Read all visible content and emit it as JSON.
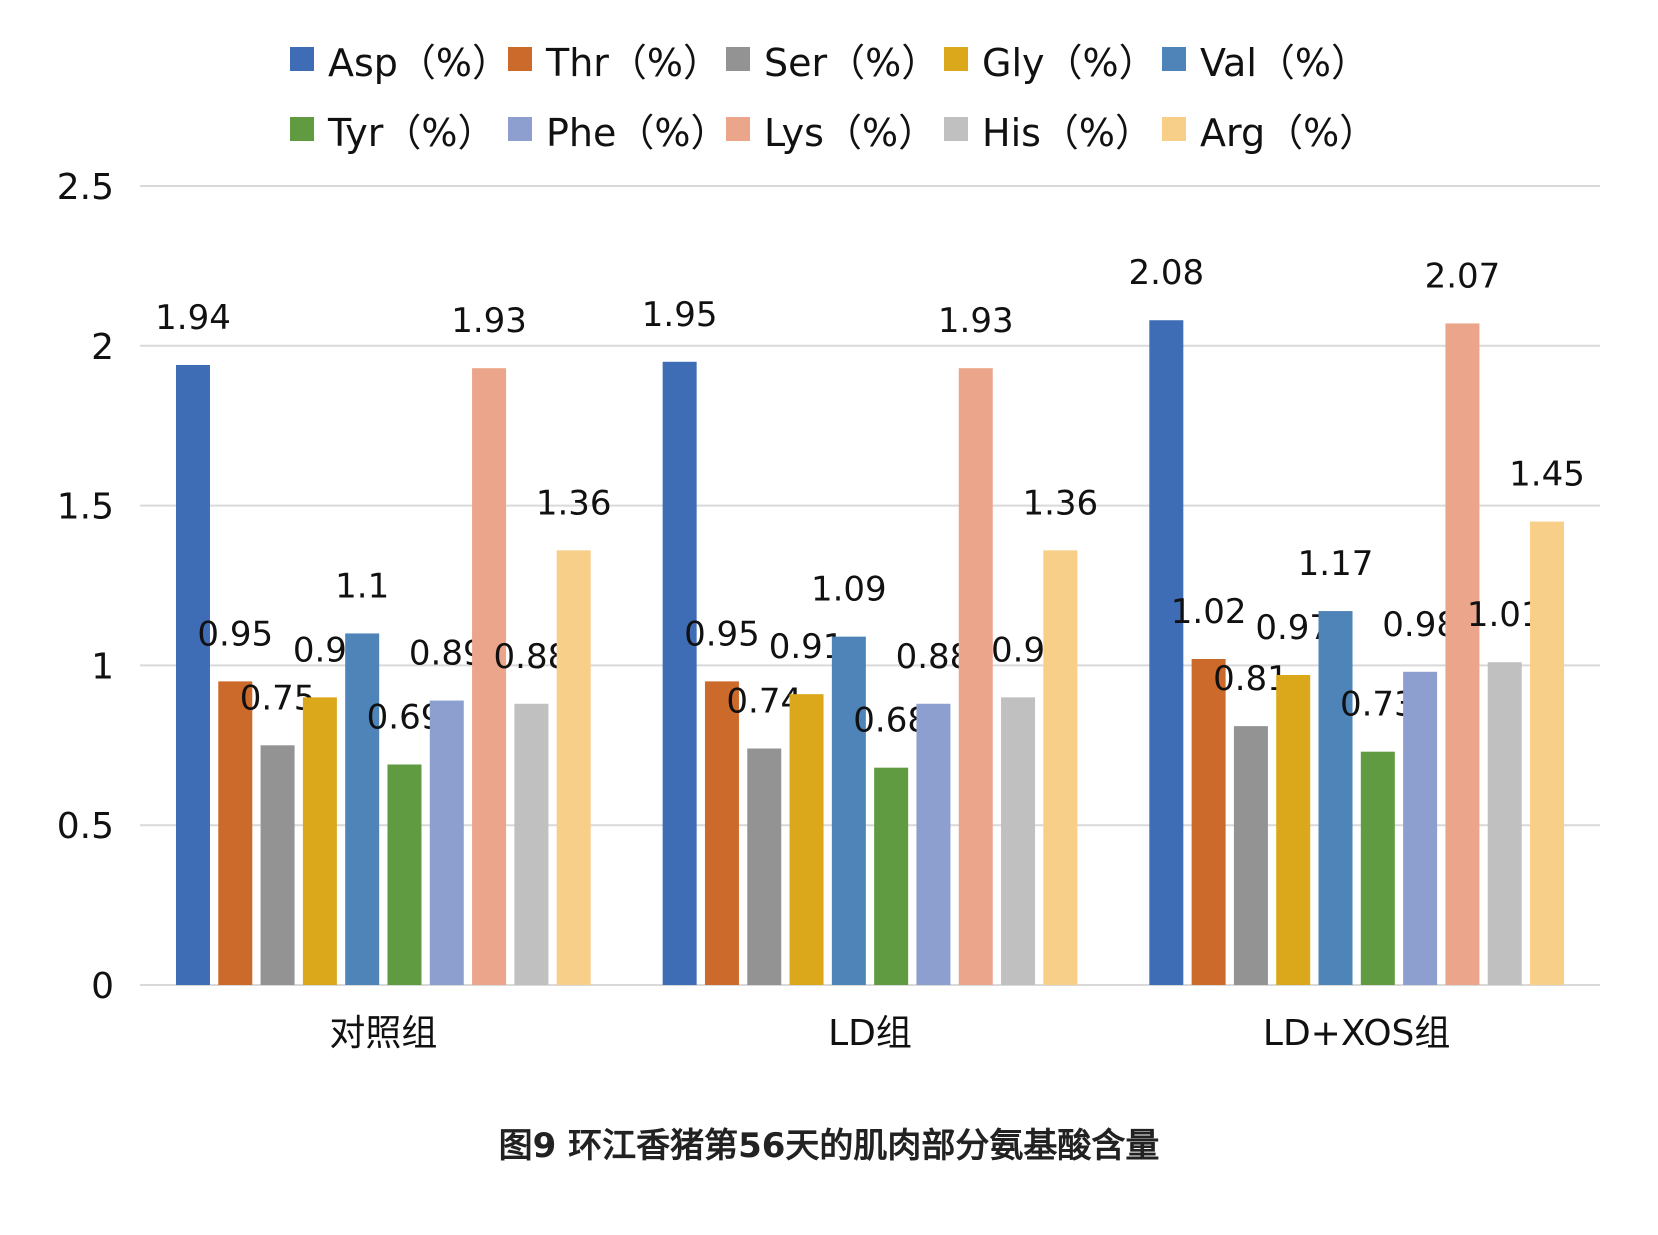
{
  "caption": "图9 环江香猪第56天的肌肉部分氨基酸含量",
  "chart_data": {
    "type": "bar",
    "categories": [
      "对照组",
      "LD组",
      "LD+XOS组"
    ],
    "series": [
      {
        "name": "Asp（%）",
        "color": "#3f6db5",
        "values": [
          1.94,
          1.95,
          2.08
        ]
      },
      {
        "name": "Thr（%）",
        "color": "#cc6a2c",
        "values": [
          0.95,
          0.95,
          1.02
        ]
      },
      {
        "name": "Ser（%）",
        "color": "#939393",
        "values": [
          0.75,
          0.74,
          0.81
        ]
      },
      {
        "name": "Gly（%）",
        "color": "#dba71b",
        "values": [
          0.9,
          0.91,
          0.97
        ]
      },
      {
        "name": "Val（%）",
        "color": "#4e84b7",
        "values": [
          1.1,
          1.09,
          1.17
        ]
      },
      {
        "name": "Tyr（%）",
        "color": "#609a41",
        "values": [
          0.69,
          0.68,
          0.73
        ]
      },
      {
        "name": "Phe（%）",
        "color": "#8c9fcf",
        "values": [
          0.89,
          0.88,
          0.98
        ]
      },
      {
        "name": "Lys（%）",
        "color": "#eba58a",
        "values": [
          1.93,
          1.93,
          2.07
        ]
      },
      {
        "name": "His（%）",
        "color": "#c0c0c0",
        "values": [
          0.88,
          0.9,
          1.01
        ]
      },
      {
        "name": "Arg（%）",
        "color": "#f8cf88",
        "values": [
          1.36,
          1.36,
          1.45
        ]
      }
    ],
    "yticks": [
      "0",
      "0.5",
      "1",
      "1.5",
      "2",
      "2.5"
    ],
    "ylim": [
      0,
      2.5
    ],
    "grid": true,
    "legend": "top"
  }
}
